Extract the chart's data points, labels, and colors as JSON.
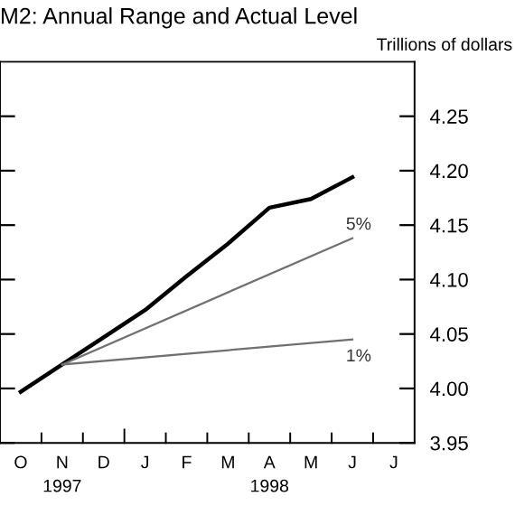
{
  "chart_data": {
    "type": "line",
    "title": "M2: Annual Range and Actual Level",
    "ylabel": "Trillions of dollars",
    "categories": [
      "O",
      "N",
      "D",
      "J",
      "F",
      "M",
      "A",
      "M",
      "J",
      "J"
    ],
    "series": [
      {
        "color": "#000000",
        "values": [
          3.997,
          4.022,
          4.047,
          4.072,
          4.103,
          4.133,
          4.166,
          4.174,
          4.194,
          null
        ]
      },
      {
        "name": "5%",
        "color": "#707070",
        "values": [
          null,
          4.022,
          null,
          null,
          null,
          null,
          null,
          null,
          4.138,
          null
        ]
      },
      {
        "name": "1%",
        "color": "#707070",
        "values": [
          null,
          4.022,
          null,
          null,
          null,
          null,
          null,
          null,
          4.045,
          null
        ]
      }
    ],
    "ylim": [
      3.95,
      4.3
    ],
    "yticks": [
      {
        "value": 3.95,
        "label": "3.95"
      },
      {
        "value": 4.0,
        "label": "4.00"
      },
      {
        "value": 4.05,
        "label": "4.05"
      },
      {
        "value": 4.1,
        "label": "4.10"
      },
      {
        "value": 4.15,
        "label": "4.15"
      },
      {
        "value": 4.2,
        "label": "4.20"
      },
      {
        "value": 4.25,
        "label": "4.25"
      }
    ],
    "annotations": [
      "1997",
      "1998"
    ],
    "grid": false,
    "marker": "none",
    "line_style": "solid"
  }
}
